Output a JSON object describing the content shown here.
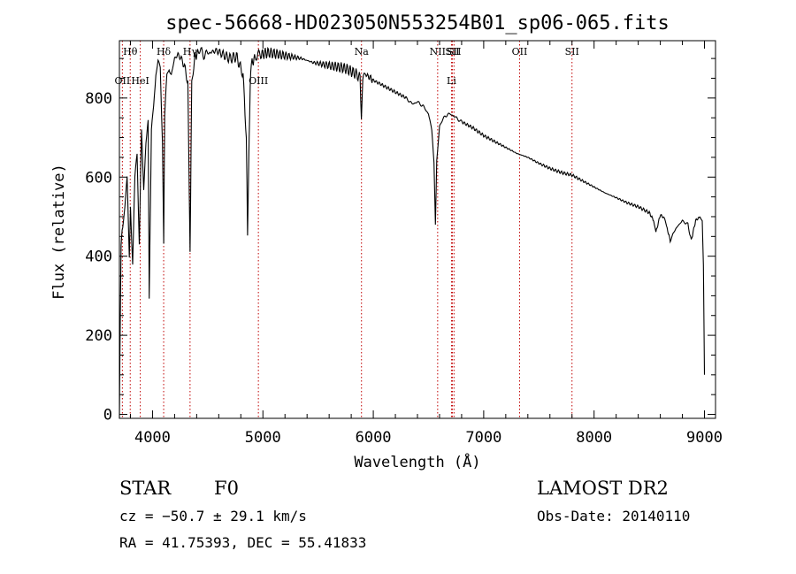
{
  "chart_data": {
    "type": "line",
    "title": "spec-56668-HD023050N553254B01_sp06-065.fits",
    "xlabel": "Wavelength (Å)",
    "ylabel": "Flux (relative)",
    "xlim": [
      3700,
      9100
    ],
    "ylim": [
      -10,
      945
    ],
    "xticks": [
      4000,
      5000,
      6000,
      7000,
      8000,
      9000
    ],
    "yticks": [
      0,
      200,
      400,
      600,
      800
    ],
    "series": [
      {
        "x": [
          3700,
          3715,
          3730,
          3750,
          3770,
          3790,
          3800,
          3820,
          3840,
          3860,
          3880,
          3900,
          3920,
          3940,
          3960,
          3970,
          3990,
          4010,
          4030,
          4050,
          4070,
          4090,
          4101,
          4110,
          4130,
          4150,
          4170,
          4200,
          4230,
          4260,
          4290,
          4320,
          4340,
          4355,
          4380,
          4420,
          4470,
          4520,
          4580,
          4640,
          4700,
          4760,
          4820,
          4850,
          4861,
          4875,
          4890,
          4930,
          4980,
          5050,
          5150,
          5250,
          5350,
          5450,
          5550,
          5650,
          5750,
          5850,
          5880,
          5892,
          5905,
          5930,
          6000,
          6100,
          6200,
          6300,
          6350,
          6400,
          6450,
          6500,
          6530,
          6550,
          6563,
          6575,
          6600,
          6650,
          6700,
          6750,
          6800,
          6900,
          7000,
          7100,
          7200,
          7300,
          7400,
          7500,
          7600,
          7700,
          7800,
          7900,
          8000,
          8100,
          8200,
          8300,
          8400,
          8500,
          8540,
          8560,
          8600,
          8640,
          8662,
          8690,
          8740,
          8800,
          8850,
          8880,
          8920,
          8960,
          8980,
          8990,
          9000
        ],
        "y": [
          0,
          430,
          480,
          520,
          600,
          400,
          520,
          380,
          590,
          650,
          430,
          710,
          560,
          690,
          740,
          300,
          720,
          780,
          870,
          900,
          880,
          700,
          420,
          760,
          860,
          880,
          860,
          900,
          910,
          900,
          880,
          840,
          400,
          840,
          900,
          920,
          910,
          915,
          920,
          910,
          900,
          905,
          860,
          700,
          460,
          700,
          880,
          905,
          910,
          915,
          910,
          905,
          900,
          890,
          885,
          880,
          875,
          860,
          850,
          760,
          850,
          860,
          845,
          830,
          815,
          800,
          785,
          790,
          780,
          760,
          720,
          640,
          480,
          640,
          730,
          755,
          760,
          750,
          740,
          725,
          705,
          690,
          675,
          660,
          650,
          635,
          622,
          612,
          605,
          590,
          575,
          560,
          548,
          535,
          525,
          510,
          490,
          460,
          505,
          495,
          470,
          440,
          470,
          490,
          480,
          440,
          490,
          500,
          490,
          380,
          100
        ]
      }
    ],
    "line_markers": [
      {
        "label": "Hθ",
        "x": 3798,
        "row": 1
      },
      {
        "label": "OII",
        "x": 3727,
        "row": 2
      },
      {
        "label": "HeI",
        "x": 3889,
        "row": 2
      },
      {
        "label": "Hδ",
        "x": 4101,
        "row": 1
      },
      {
        "label": "Hγ",
        "x": 4340,
        "row": 1
      },
      {
        "label": "OIII",
        "x": 4959,
        "row": 2
      },
      {
        "label": "Na",
        "x": 5893,
        "row": 1
      },
      {
        "label": "NII",
        "x": 6583,
        "row": 1
      },
      {
        "label": "SII",
        "x": 6716,
        "row": 1
      },
      {
        "label": "Li",
        "x": 6708,
        "row": 2
      },
      {
        "label": "SII",
        "x": 6731,
        "row": 0
      },
      {
        "label": "OII",
        "x": 7325,
        "row": 1
      },
      {
        "label": "SII",
        "x": 7800,
        "row": 1
      }
    ],
    "grid": false
  },
  "info": {
    "object_class": "STAR",
    "subclass": "F0",
    "survey": "LAMOST DR2",
    "cz": "cz = −50.7 ± 29.1 km/s",
    "obs_date": "Obs-Date: 20140110",
    "coords": "RA =  41.75393, DEC =  55.41833"
  },
  "colors": {
    "spectrum": "#000000",
    "marker": "#c00000",
    "axis": "#000000"
  }
}
